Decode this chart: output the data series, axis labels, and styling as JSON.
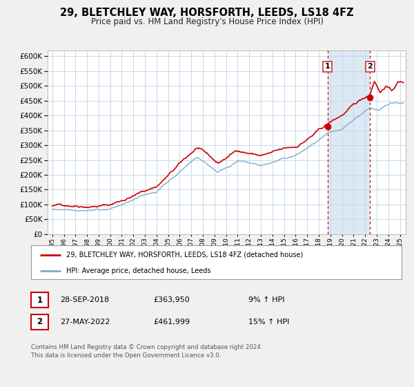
{
  "title": "29, BLETCHLEY WAY, HORSFORTH, LEEDS, LS18 4FZ",
  "subtitle": "Price paid vs. HM Land Registry's House Price Index (HPI)",
  "legend_entry1": "29, BLETCHLEY WAY, HORSFORTH, LEEDS, LS18 4FZ (detached house)",
  "legend_entry2": "HPI: Average price, detached house, Leeds",
  "marker1_date": 2018.75,
  "marker1_price": 363950,
  "marker1_text": "28-SEP-2018",
  "marker1_pct": "9% ↑ HPI",
  "marker2_date": 2022.42,
  "marker2_price": 461999,
  "marker2_text": "27-MAY-2022",
  "marker2_pct": "15% ↑ HPI",
  "footer": "Contains HM Land Registry data © Crown copyright and database right 2024.\nThis data is licensed under the Open Government Licence v3.0.",
  "red_color": "#cc0000",
  "blue_color": "#7faacc",
  "shade_color": "#dce9f5",
  "bg_color": "#f0f0f0",
  "plot_bg_color": "#ffffff",
  "grid_color": "#c8d8e8",
  "ylim_max": 620000,
  "xlim_start": 1994.6,
  "xlim_end": 2025.5
}
